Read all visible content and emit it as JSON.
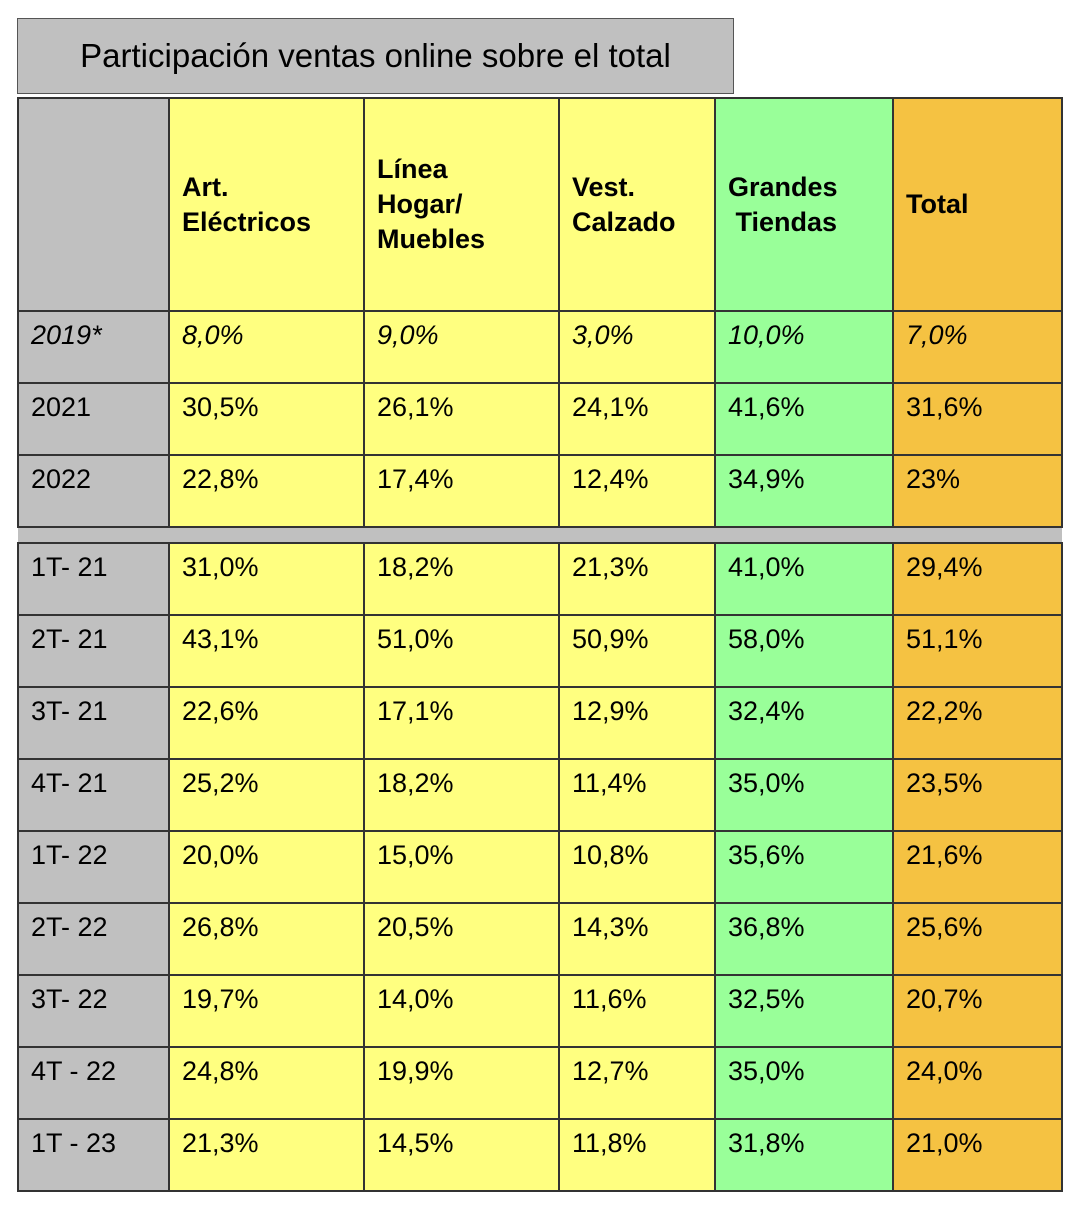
{
  "title": "Participación ventas online sobre el total",
  "colors": {
    "row_header": "#c0c0c0",
    "category": "#ffff80",
    "grandes_tiendas": "#99ff99",
    "total": "#f5c242"
  },
  "chart_data": {
    "type": "table",
    "title": "Participación ventas online sobre el total",
    "columns": [
      {
        "lines": [
          "Art.",
          "Eléctricos"
        ]
      },
      {
        "lines": [
          "Línea",
          "Hogar/",
          "Muebles"
        ]
      },
      {
        "lines": [
          "Vest.",
          "Calzado"
        ]
      },
      {
        "lines": [
          "Grandes",
          " Tiendas"
        ]
      },
      {
        "lines": [
          "Total"
        ]
      }
    ],
    "annual_rows": [
      {
        "label": "2019*",
        "values": [
          "8,0%",
          "9,0%",
          "3,0%",
          "10,0%",
          "7,0%"
        ]
      },
      {
        "label": "2021",
        "values": [
          "30,5%",
          "26,1%",
          "24,1%",
          "41,6%",
          "31,6%"
        ]
      },
      {
        "label": "2022",
        "values": [
          "22,8%",
          "17,4%",
          "12,4%",
          "34,9%",
          "23%"
        ]
      }
    ],
    "quarterly_rows": [
      {
        "label": "1T- 21",
        "values": [
          "31,0%",
          "18,2%",
          "21,3%",
          "41,0%",
          "29,4%"
        ]
      },
      {
        "label": "2T- 21",
        "values": [
          "43,1%",
          "51,0%",
          "50,9%",
          "58,0%",
          "51,1%"
        ]
      },
      {
        "label": "3T- 21",
        "values": [
          "22,6%",
          "17,1%",
          "12,9%",
          "32,4%",
          "22,2%"
        ]
      },
      {
        "label": "4T- 21",
        "values": [
          "25,2%",
          "18,2%",
          "11,4%",
          "35,0%",
          "23,5%"
        ]
      },
      {
        "label": "1T- 22",
        "values": [
          "20,0%",
          "15,0%",
          "10,8%",
          "35,6%",
          "21,6%"
        ]
      },
      {
        "label": "2T- 22",
        "values": [
          "26,8%",
          "20,5%",
          "14,3%",
          "36,8%",
          "25,6%"
        ]
      },
      {
        "label": "3T- 22",
        "values": [
          "19,7%",
          "14,0%",
          "11,6%",
          "32,5%",
          "20,7%"
        ]
      },
      {
        "label": "4T - 22",
        "values": [
          "24,8%",
          "19,9%",
          "12,7%",
          "35,0%",
          "24,0%"
        ]
      },
      {
        "label": "1T - 23",
        "values": [
          "21,3%",
          "14,5%",
          "11,8%",
          "31,8%",
          "21,0%"
        ]
      }
    ]
  }
}
